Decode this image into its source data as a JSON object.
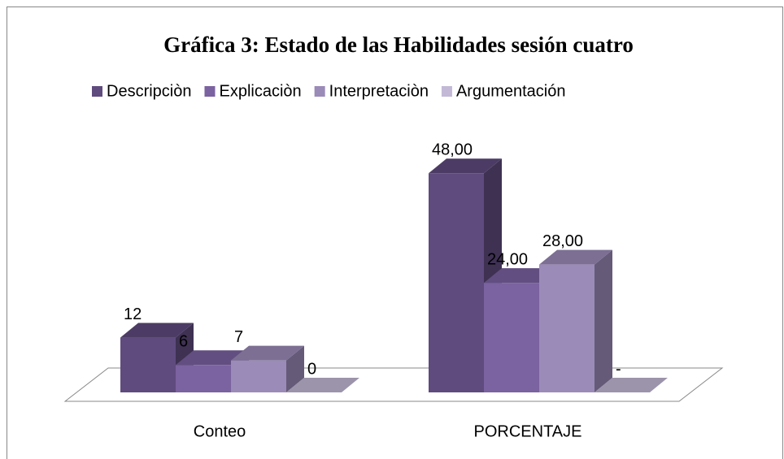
{
  "chart_data": {
    "type": "bar3d",
    "title": "Gráfica  3: Estado de las Habilidades sesión cuatro",
    "categories": [
      "Conteo",
      "PORCENTAJE"
    ],
    "ylim": [
      0,
      50
    ],
    "legend": "top",
    "series": [
      {
        "name": "Descripciòn",
        "color": "#5f4b7e",
        "values": [
          12,
          48
        ],
        "value_labels": [
          "12",
          "48,00"
        ]
      },
      {
        "name": "Explicaciòn",
        "color": "#7b62a0",
        "values": [
          6,
          24
        ],
        "value_labels": [
          "6",
          "24,00"
        ]
      },
      {
        "name": "Interpretaciòn",
        "color": "#9b8bb8",
        "values": [
          7,
          28
        ],
        "value_labels": [
          "7",
          "28,00"
        ]
      },
      {
        "name": "Argumentación",
        "color": "#c3b9d6",
        "values": [
          0,
          0
        ],
        "value_labels": [
          "0",
          "-"
        ]
      }
    ]
  }
}
